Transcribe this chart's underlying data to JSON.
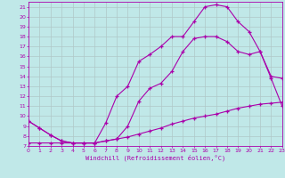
{
  "xlabel": "Windchill (Refroidissement éolien,°C)",
  "xlim": [
    0,
    23
  ],
  "ylim": [
    7,
    21.5
  ],
  "xticks": [
    0,
    1,
    2,
    3,
    4,
    5,
    6,
    7,
    8,
    9,
    10,
    11,
    12,
    13,
    14,
    15,
    16,
    17,
    18,
    19,
    20,
    21,
    22,
    23
  ],
  "yticks": [
    7,
    8,
    9,
    10,
    11,
    12,
    13,
    14,
    15,
    16,
    17,
    18,
    19,
    20,
    21
  ],
  "bg_color": "#c0e8e8",
  "line_color": "#aa00aa",
  "grid_color": "#b0c8c8",
  "line1_x": [
    0,
    1,
    2,
    3,
    4,
    5,
    6,
    7,
    8,
    9,
    10,
    11,
    12,
    13,
    14,
    15,
    16,
    17,
    18,
    19,
    20,
    21,
    22,
    23
  ],
  "line1_y": [
    9.5,
    8.8,
    8.1,
    7.5,
    7.3,
    7.3,
    7.3,
    7.5,
    7.7,
    9.0,
    11.5,
    12.8,
    13.3,
    14.5,
    16.5,
    17.8,
    18.0,
    18.0,
    17.5,
    16.5,
    16.2,
    16.5,
    14.0,
    13.8
  ],
  "line2_x": [
    0,
    1,
    2,
    3,
    4,
    5,
    6,
    7,
    8,
    9,
    10,
    11,
    12,
    13,
    14,
    15,
    16,
    17,
    18,
    19,
    20,
    21,
    22,
    23
  ],
  "line2_y": [
    9.5,
    8.8,
    8.1,
    7.5,
    7.3,
    7.3,
    7.3,
    9.3,
    12.0,
    13.0,
    15.5,
    16.2,
    17.0,
    18.0,
    18.0,
    19.5,
    21.0,
    21.2,
    21.0,
    19.5,
    18.5,
    16.5,
    13.8,
    11.0
  ],
  "line3_x": [
    0,
    1,
    2,
    3,
    4,
    5,
    6,
    7,
    8,
    9,
    10,
    11,
    12,
    13,
    14,
    15,
    16,
    17,
    18,
    19,
    20,
    21,
    22,
    23
  ],
  "line3_y": [
    7.3,
    7.3,
    7.3,
    7.3,
    7.3,
    7.3,
    7.3,
    7.5,
    7.7,
    7.9,
    8.2,
    8.5,
    8.8,
    9.2,
    9.5,
    9.8,
    10.0,
    10.2,
    10.5,
    10.8,
    11.0,
    11.2,
    11.3,
    11.4
  ]
}
